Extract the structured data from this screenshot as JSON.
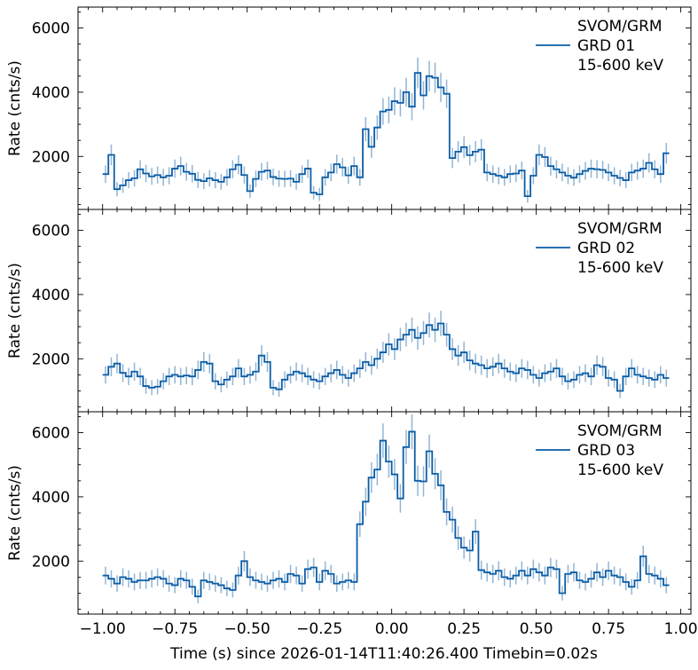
{
  "figure": {
    "xlabel": "Time (s) since 2026-01-14T11:40:26.400 Timebin=0.02s",
    "ylabel": "Rate (cnts/s)",
    "colors": {
      "line": "#0C5DA5",
      "errorbar": "rgba(12,93,165,0.45)",
      "frame": "#000000",
      "text": "#000000",
      "background": "#ffffff"
    }
  },
  "chart_data": [
    {
      "type": "line",
      "subtype": "step-histogram-with-poisson-errorbars",
      "legend": [
        "SVOM/GRM",
        "GRD 01",
        "15-600 keV"
      ],
      "legend_position": "upper right",
      "x_start": -1.0,
      "bin_width": 0.02,
      "xlim": [
        -1.085,
        1.035
      ],
      "ylim": [
        350,
        6650
      ],
      "xticks": [
        -1.0,
        -0.75,
        -0.5,
        -0.25,
        0.0,
        0.25,
        0.5,
        0.75,
        1.0
      ],
      "xtick_labels": [
        "−1.00",
        "−0.75",
        "−0.50",
        "−0.25",
        "0.00",
        "0.25",
        "0.50",
        "0.75",
        "1.00"
      ],
      "yticks": [
        2000,
        4000,
        6000
      ],
      "ytick_labels": [
        "2000",
        "4000",
        "6000"
      ],
      "x_minor_step": 0.05,
      "y_minor_step": 500,
      "grid": false,
      "error_model": "rate_err = sqrt(rate)*7.071 (Poisson, 0.02 s bins)",
      "rates": [
        1450,
        2050,
        980,
        1100,
        1260,
        1320,
        1600,
        1470,
        1380,
        1420,
        1350,
        1400,
        1620,
        1700,
        1520,
        1460,
        1270,
        1230,
        1320,
        1260,
        1210,
        1350,
        1600,
        1740,
        1420,
        920,
        1300,
        1520,
        1560,
        1360,
        1310,
        1300,
        1310,
        1210,
        1450,
        1620,
        870,
        820,
        1350,
        1500,
        1760,
        1660,
        1410,
        1700,
        1350,
        2850,
        2300,
        2900,
        3400,
        3450,
        3720,
        3670,
        4000,
        3550,
        4600,
        3900,
        4500,
        4450,
        4150,
        3950,
        1950,
        2150,
        2290,
        2040,
        2150,
        2210,
        1500,
        1450,
        1400,
        1350,
        1450,
        1470,
        1560,
        760,
        1400,
        2050,
        1980,
        1700,
        1600,
        1500,
        1400,
        1340,
        1450,
        1550,
        1620,
        1600,
        1580,
        1500,
        1400,
        1330,
        1260,
        1500,
        1560,
        1620,
        1800,
        1600,
        1450,
        2100
      ]
    },
    {
      "type": "line",
      "subtype": "step-histogram-with-poisson-errorbars",
      "legend": [
        "SVOM/GRM",
        "GRD 02",
        "15-600 keV"
      ],
      "legend_position": "upper right",
      "x_start": -1.0,
      "bin_width": 0.02,
      "xlim": [
        -1.085,
        1.035
      ],
      "ylim": [
        350,
        6650
      ],
      "xticks": [
        -1.0,
        -0.75,
        -0.5,
        -0.25,
        0.0,
        0.25,
        0.5,
        0.75,
        1.0
      ],
      "xtick_labels": [
        "−1.00",
        "−0.75",
        "−0.50",
        "−0.25",
        "0.00",
        "0.25",
        "0.50",
        "0.75",
        "1.00"
      ],
      "yticks": [
        2000,
        4000,
        6000
      ],
      "ytick_labels": [
        "2000",
        "4000",
        "6000"
      ],
      "x_minor_step": 0.05,
      "y_minor_step": 500,
      "grid": false,
      "error_model": "rate_err = sqrt(rate)*7.071 (Poisson, 0.02 s bins)",
      "rates": [
        1500,
        1750,
        1850,
        1560,
        1450,
        1600,
        1450,
        1150,
        1100,
        1130,
        1300,
        1450,
        1500,
        1450,
        1480,
        1450,
        1650,
        1900,
        1850,
        1300,
        1200,
        1350,
        1450,
        1700,
        1450,
        1500,
        1600,
        2100,
        1900,
        1100,
        1050,
        1350,
        1500,
        1600,
        1550,
        1450,
        1350,
        1300,
        1450,
        1550,
        1650,
        1500,
        1400,
        1550,
        1700,
        1900,
        1800,
        2000,
        2200,
        2450,
        2300,
        2600,
        2750,
        2900,
        2650,
        2800,
        3050,
        2900,
        3100,
        2750,
        2300,
        2100,
        2200,
        1950,
        1850,
        1800,
        1700,
        1750,
        1850,
        1700,
        1600,
        1550,
        1700,
        1650,
        1500,
        1400,
        1550,
        1600,
        1700,
        1450,
        1300,
        1350,
        1500,
        1550,
        1450,
        1800,
        1750,
        1400,
        1350,
        1000,
        1450,
        1700,
        1500,
        1450,
        1400,
        1350,
        1500,
        1400
      ]
    },
    {
      "type": "line",
      "subtype": "step-histogram-with-poisson-errorbars",
      "legend": [
        "SVOM/GRM",
        "GRD 03",
        "15-600 keV"
      ],
      "legend_position": "upper right",
      "x_start": -1.0,
      "bin_width": 0.02,
      "xlim": [
        -1.085,
        1.035
      ],
      "ylim": [
        350,
        6650
      ],
      "xticks": [
        -1.0,
        -0.75,
        -0.5,
        -0.25,
        0.0,
        0.25,
        0.5,
        0.75,
        1.0
      ],
      "xtick_labels": [
        "−1.00",
        "−0.75",
        "−0.50",
        "−0.25",
        "0.00",
        "0.25",
        "0.50",
        "0.75",
        "1.00"
      ],
      "yticks": [
        2000,
        4000,
        6000
      ],
      "ytick_labels": [
        "2000",
        "4000",
        "6000"
      ],
      "x_minor_step": 0.05,
      "y_minor_step": 500,
      "grid": false,
      "error_model": "rate_err = sqrt(rate)*7.071 (Poisson, 0.02 s bins)",
      "rates": [
        1550,
        1450,
        1300,
        1500,
        1450,
        1350,
        1400,
        1400,
        1450,
        1500,
        1450,
        1300,
        1250,
        1450,
        1400,
        1200,
        900,
        1400,
        1350,
        1300,
        1250,
        1150,
        1100,
        1550,
        2000,
        1500,
        1400,
        1350,
        1300,
        1400,
        1450,
        1350,
        1600,
        1550,
        1300,
        1750,
        1800,
        1350,
        1700,
        1600,
        1300,
        1350,
        1400,
        1350,
        3150,
        3850,
        4600,
        4850,
        5750,
        5100,
        4700,
        3950,
        5550,
        6030,
        4500,
        4480,
        5420,
        4720,
        4360,
        3530,
        3290,
        2720,
        2420,
        2330,
        2920,
        1720,
        1650,
        1600,
        1700,
        1500,
        1450,
        1550,
        1700,
        1550,
        1750,
        1650,
        1550,
        1800,
        1750,
        1000,
        1600,
        1650,
        1400,
        1350,
        1450,
        1650,
        1500,
        1700,
        1550,
        1500,
        1350,
        1200,
        1400,
        2150,
        1600,
        1550,
        1450,
        1250
      ]
    }
  ]
}
